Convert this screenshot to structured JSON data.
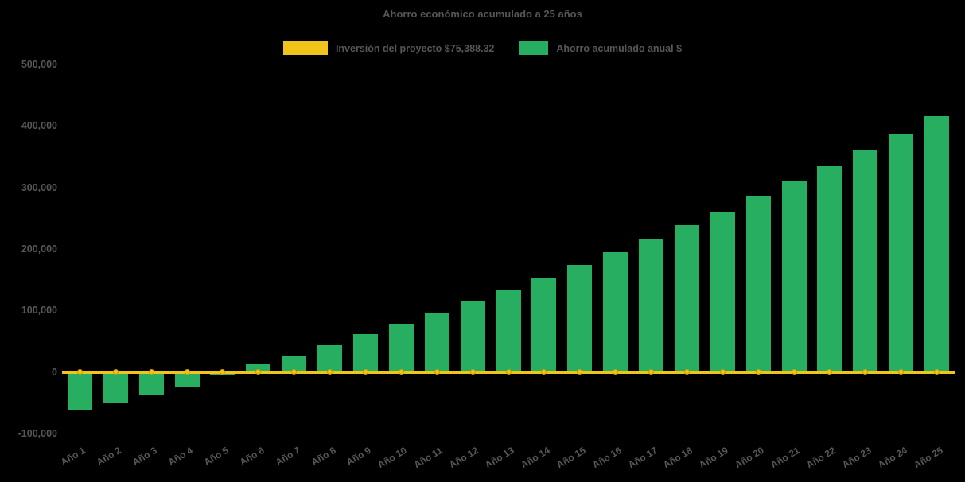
{
  "chart_data": {
    "type": "bar",
    "title": "Ahorro económico acumulado a 25 años",
    "categories": [
      "Año 1",
      "Año 2",
      "Año 3",
      "Año 4",
      "Año 5",
      "Año 6",
      "Año 7",
      "Año 8",
      "Año 9",
      "Año 10",
      "Año 11",
      "Año 12",
      "Año 13",
      "Año 14",
      "Año 15",
      "Año 16",
      "Año 17",
      "Año 18",
      "Año 19",
      "Año 20",
      "Año 21",
      "Año 22",
      "Año 23",
      "Año 24",
      "Año 25"
    ],
    "series": [
      {
        "name": "Inversión del proyecto $75,388.32",
        "type": "line",
        "color": "#f0c419",
        "values": [
          0,
          0,
          0,
          0,
          0,
          0,
          0,
          0,
          0,
          0,
          0,
          0,
          0,
          0,
          0,
          0,
          0,
          0,
          0,
          0,
          0,
          0,
          0,
          0,
          0
        ]
      },
      {
        "name": "Ahorro acumulado anual $",
        "type": "bar",
        "color": "#27ae60",
        "values": [
          -62000,
          -51000,
          -38000,
          -24000,
          -6000,
          12000,
          27000,
          44000,
          61000,
          79000,
          97000,
          115000,
          134000,
          153000,
          174000,
          195000,
          217000,
          239000,
          261000,
          285000,
          310000,
          335000,
          361000,
          388000,
          416000
        ]
      }
    ],
    "ylim": [
      -100000,
      500000
    ],
    "yticks": [
      {
        "label": "500,000",
        "value": 500000
      },
      {
        "label": "400,000",
        "value": 400000
      },
      {
        "label": "300,000",
        "value": 300000
      },
      {
        "label": "200,000",
        "value": 200000
      },
      {
        "label": "100,000",
        "value": 100000
      },
      {
        "label": "0",
        "value": 0
      },
      {
        "label": "-100,000",
        "value": -100000
      }
    ],
    "legend_position": "top",
    "grid": false,
    "xlabel": "",
    "ylabel": ""
  }
}
